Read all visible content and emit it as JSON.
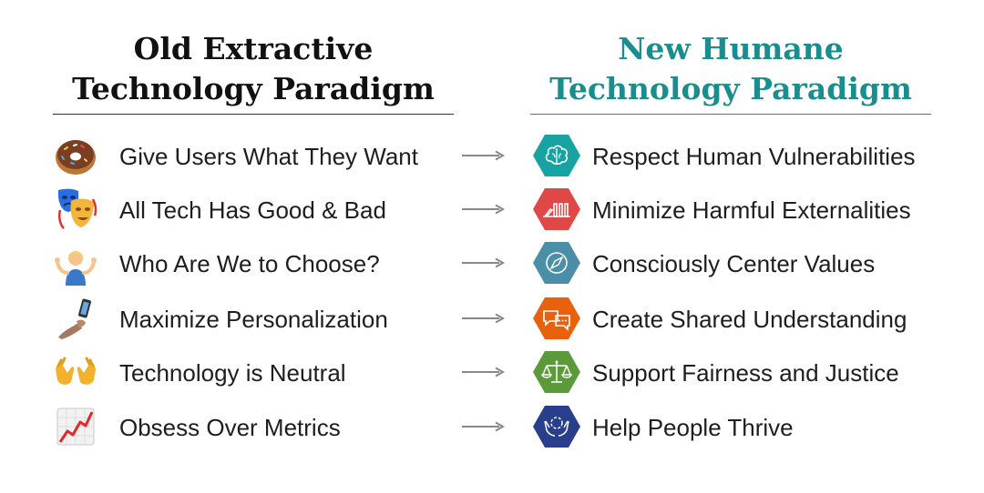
{
  "old_heading": {
    "line1": "Old Extractive",
    "line2": "Technology Paradigm"
  },
  "new_heading": {
    "line1": "New Humane",
    "line2": "Technology Paradigm"
  },
  "colors": {
    "new_heading": "#1a8e8e",
    "hex_respect": "#18a3a3",
    "hex_minimize": "#e04848",
    "hex_values": "#4a8ea8",
    "hex_shared": "#e8620e",
    "hex_fairness": "#5a9a3a",
    "hex_thrive": "#2a3f8c"
  },
  "rows": [
    {
      "old_icon": "donut-icon",
      "old": "Give Users What They Want",
      "new_icon": "brain-icon",
      "new": "Respect Human Vulnerabilities"
    },
    {
      "old_icon": "theater-masks-icon",
      "old": "All Tech Has Good & Bad",
      "new_icon": "dominoes-icon",
      "new": "Minimize Harmful Externalities"
    },
    {
      "old_icon": "person-shrugging-icon",
      "old": "Who Are We to Choose?",
      "new_icon": "compass-icon",
      "new": "Consciously Center Values"
    },
    {
      "old_icon": "selfie-icon",
      "old": "Maximize Personalization",
      "new_icon": "speech-bubbles-icon",
      "new": "Create Shared Understanding"
    },
    {
      "old_icon": "open-hands-icon",
      "old": "Technology is Neutral",
      "new_icon": "scales-icon",
      "new": "Support Fairness and Justice"
    },
    {
      "old_icon": "chart-increasing-icon",
      "old": "Obsess Over Metrics",
      "new_icon": "hands-circle-icon",
      "new": "Help People Thrive"
    }
  ]
}
